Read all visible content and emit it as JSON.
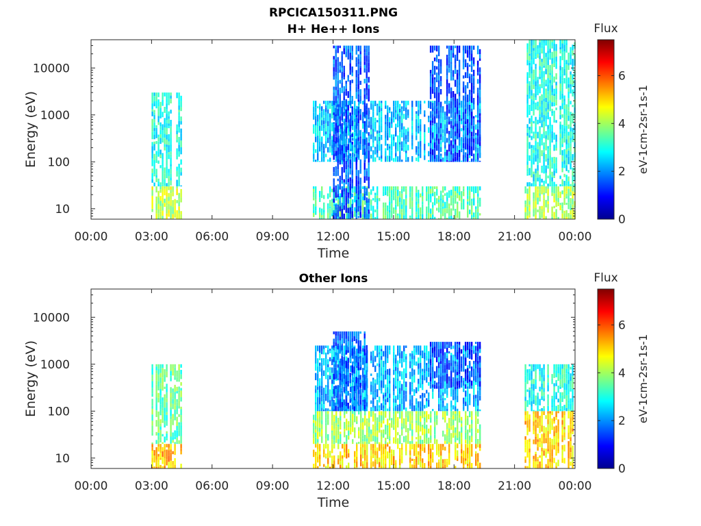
{
  "figure": {
    "title_line1": "RPCICA150311.PNG",
    "title_line2": "H+ He++ Ions"
  },
  "colors": {
    "colormap": [
      "#00008f",
      "#0000ff",
      "#0080ff",
      "#00ffff",
      "#80ff80",
      "#ffff00",
      "#ff8000",
      "#ff0000",
      "#800000"
    ]
  },
  "chart_data": [
    {
      "type": "heatmap",
      "title": "H+ He++ Ions",
      "xlabel": "Time",
      "ylabel": "Energy (eV)",
      "xticks": [
        "00:00",
        "03:00",
        "06:00",
        "09:00",
        "12:00",
        "15:00",
        "18:00",
        "21:00",
        "00:00"
      ],
      "xlim_hours": [
        0,
        24
      ],
      "yscale": "log",
      "yticks": [
        "10",
        "100",
        "1000",
        "10000"
      ],
      "ylim": [
        6,
        40000
      ],
      "colorbar": {
        "label": "Flux",
        "units": "eV-1cm-2sr-1s-1",
        "ticks": [
          "0",
          "2",
          "4",
          "6"
        ],
        "range": [
          0,
          7.5
        ]
      },
      "blocks": [
        {
          "t": [
            3.0,
            4.5
          ],
          "e": [
            6,
            30
          ],
          "flux": 4.2
        },
        {
          "t": [
            3.0,
            4.5
          ],
          "e": [
            30,
            3000
          ],
          "flux": 3.0
        },
        {
          "t": [
            11.0,
            19.3
          ],
          "e": [
            6,
            30
          ],
          "flux": 3.3
        },
        {
          "t": [
            11.0,
            19.3
          ],
          "e": [
            100,
            2000
          ],
          "flux": 2.4
        },
        {
          "t": [
            12.0,
            13.8
          ],
          "e": [
            6,
            30000
          ],
          "flux": 1.6
        },
        {
          "t": [
            16.8,
            19.3
          ],
          "e": [
            100,
            30000
          ],
          "flux": 1.5
        },
        {
          "t": [
            21.5,
            24.0
          ],
          "e": [
            6,
            30
          ],
          "flux": 4.0
        },
        {
          "t": [
            21.5,
            24.0
          ],
          "e": [
            30,
            40000
          ],
          "flux": 3.0
        }
      ]
    },
    {
      "type": "heatmap",
      "title": "Other Ions",
      "xlabel": "Time",
      "ylabel": "Energy (eV)",
      "xticks": [
        "00:00",
        "03:00",
        "06:00",
        "09:00",
        "12:00",
        "15:00",
        "18:00",
        "21:00",
        "00:00"
      ],
      "xlim_hours": [
        0,
        24
      ],
      "yscale": "log",
      "yticks": [
        "10",
        "100",
        "1000",
        "10000"
      ],
      "ylim": [
        6,
        40000
      ],
      "colorbar": {
        "label": "Flux",
        "units": "eV-1cm-2sr-1s-1",
        "ticks": [
          "0",
          "2",
          "4",
          "6"
        ],
        "range": [
          0,
          7.5
        ]
      },
      "blocks": [
        {
          "t": [
            3.0,
            4.5
          ],
          "e": [
            6,
            20
          ],
          "flux": 5.2
        },
        {
          "t": [
            3.0,
            4.5
          ],
          "e": [
            20,
            1000
          ],
          "flux": 3.5
        },
        {
          "t": [
            11.0,
            19.3
          ],
          "e": [
            6,
            20
          ],
          "flux": 5.0
        },
        {
          "t": [
            11.0,
            19.3
          ],
          "e": [
            20,
            100
          ],
          "flux": 4.0
        },
        {
          "t": [
            11.0,
            19.3
          ],
          "e": [
            100,
            2500
          ],
          "flux": 2.3
        },
        {
          "t": [
            12.0,
            13.8
          ],
          "e": [
            100,
            5000
          ],
          "flux": 1.7
        },
        {
          "t": [
            16.8,
            19.3
          ],
          "e": [
            300,
            3000
          ],
          "flux": 1.4
        },
        {
          "t": [
            21.5,
            24.0
          ],
          "e": [
            6,
            100
          ],
          "flux": 5.0
        },
        {
          "t": [
            21.5,
            24.0
          ],
          "e": [
            100,
            1000
          ],
          "flux": 3.0
        }
      ]
    }
  ]
}
